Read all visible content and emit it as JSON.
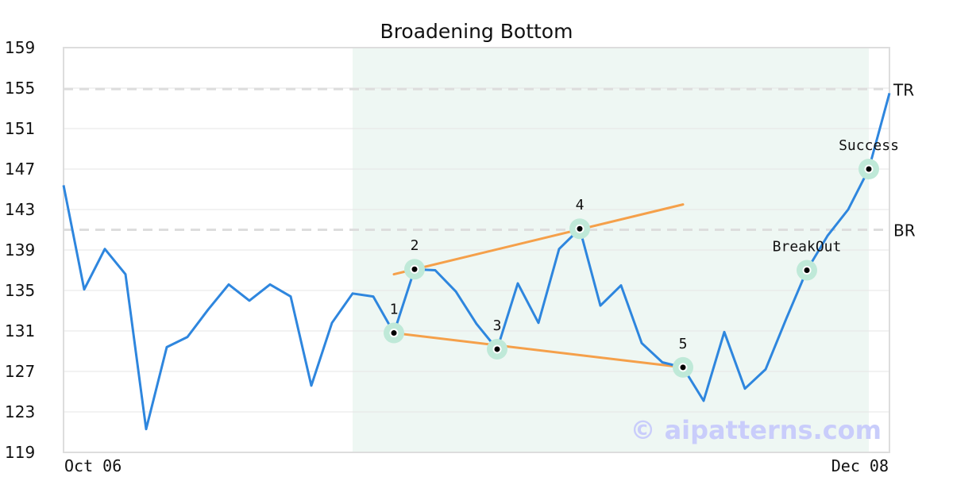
{
  "chart_data": {
    "type": "line",
    "title": "Broadening Bottom",
    "xlabel": "",
    "ylabel": "",
    "x_tick_labels": [
      "Oct 06",
      "Dec 08"
    ],
    "y_ticks": [
      119,
      123,
      127,
      131,
      135,
      139,
      143,
      147,
      151,
      155,
      159
    ],
    "ylim": [
      119,
      159
    ],
    "grid": "horizontal",
    "series": [
      {
        "color": "#2e86de",
        "values": [
          145.4,
          135.1,
          139.1,
          136.6,
          121.3,
          129.4,
          130.4,
          133.1,
          135.6,
          134.0,
          135.6,
          134.4,
          125.6,
          131.8,
          134.7,
          134.4,
          130.8,
          137.1,
          137.0,
          134.9,
          131.7,
          129.2,
          135.7,
          131.8,
          139.1,
          141.1,
          133.5,
          135.5,
          129.8,
          127.9,
          127.4,
          124.1,
          130.9,
          125.3,
          127.2,
          132.2,
          137.0,
          140.4,
          143.0,
          147.0,
          154.5
        ]
      }
    ],
    "horizontal_lines": [
      {
        "label": "TR",
        "value": 154.9
      },
      {
        "label": "BR",
        "value": 141.0
      }
    ],
    "highlight_range": [
      14,
      39
    ],
    "trendlines": [
      {
        "from": [
          16,
          130.8
        ],
        "to": [
          30,
          127.4
        ]
      },
      {
        "from": [
          16,
          136.6
        ],
        "to": [
          30,
          143.5
        ]
      }
    ],
    "markers": [
      {
        "index": 16,
        "value": 130.8,
        "label": "1"
      },
      {
        "index": 17,
        "value": 137.1,
        "label": "2"
      },
      {
        "index": 21,
        "value": 129.2,
        "label": "3"
      },
      {
        "index": 25,
        "value": 141.1,
        "label": "4"
      },
      {
        "index": 30,
        "value": 127.4,
        "label": "5"
      },
      {
        "index": 36,
        "value": 137.0,
        "label": "BreakOut"
      },
      {
        "index": 39,
        "value": 147.0,
        "label": "Success"
      }
    ],
    "watermark": "© aipatterns.com",
    "colors": {
      "line": "#2e86de",
      "trend": "#f5a04a",
      "highlight": "#eef7f3",
      "marker_halo": "#bfe9d8",
      "reference": "#dddddd",
      "grid": "#e6e6e6",
      "frame": "#dddddd"
    }
  }
}
